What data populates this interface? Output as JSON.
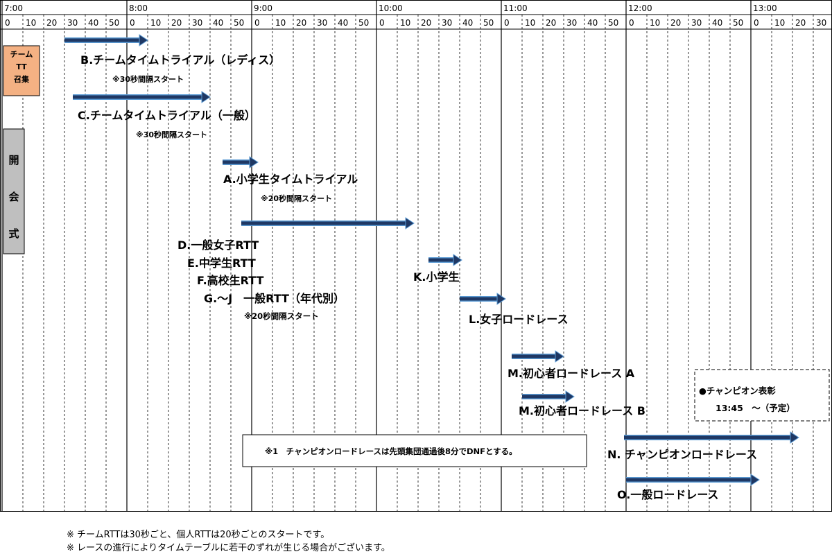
{
  "colors": {
    "arrow_fill": "#1f3864",
    "arrow_edge": "#5b9bd5",
    "tt_call_box": "#f4b183",
    "opening_box": "#bfbfbf"
  },
  "hours": [
    "7:00",
    "8:00",
    "9:00",
    "10:00",
    "11:00",
    "12:00",
    "13:00"
  ],
  "minute_labels": [
    "0",
    "10",
    "20",
    "30",
    "40",
    "50"
  ],
  "side_boxes": {
    "tt_call": [
      "チーム",
      "TT",
      "召集"
    ],
    "opening": [
      "開",
      "会",
      "式"
    ]
  },
  "events": [
    {
      "id": "B",
      "start": "7:30",
      "end": "8:10",
      "label": "B.チームタイムトライアル（レディス）",
      "note": "※30秒間隔スタート"
    },
    {
      "id": "C",
      "start": "7:34",
      "end": "8:40",
      "label": "C.チームタイムトライアル（一般）",
      "note": "※30秒間隔スタート"
    },
    {
      "id": "A",
      "start": "8:46",
      "end": "9:03",
      "label": "A.小学生タイムトライアル",
      "note": "※20秒間隔スタート"
    },
    {
      "id": "DG",
      "start": "8:55",
      "end": "10:18",
      "labels": [
        "D.一般女子RTT",
        "E.中学生RTT",
        "F.高校生RTT",
        "G.～J　一般RTT（年代別）"
      ],
      "note": "※20秒間隔スタート"
    },
    {
      "id": "K",
      "start": "10:25",
      "end": "10:41",
      "label": "K.小学生"
    },
    {
      "id": "L",
      "start": "10:40",
      "end": "11:02",
      "label": "L.女子ロードレース"
    },
    {
      "id": "M-A",
      "start": "11:05",
      "end": "11:30",
      "label": "M.初心者ロードレース A"
    },
    {
      "id": "M-B",
      "start": "11:10",
      "end": "11:35",
      "label": "M.初心者ロードレース B"
    },
    {
      "id": "N",
      "start": "11:59",
      "end": "13:23",
      "label": "N. チャンピオンロードレース"
    },
    {
      "id": "O",
      "start": "12:00",
      "end": "13:04",
      "label": "O.一般ロードレース"
    }
  ],
  "dnf_note": "※1　チャンピオンロードレースは先頭集団通過後8分でDNFとする。",
  "ceremony": {
    "line1": "●チャンピオン表彰",
    "line2": "13:45　～（予定）"
  },
  "footnotes": [
    "※ チームRTTは30秒ごと、個人RTTは20秒ごとのスタートです。",
    "※ レースの進行によりタイムテーブルに若干のずれが生じる場合がございます。"
  ]
}
